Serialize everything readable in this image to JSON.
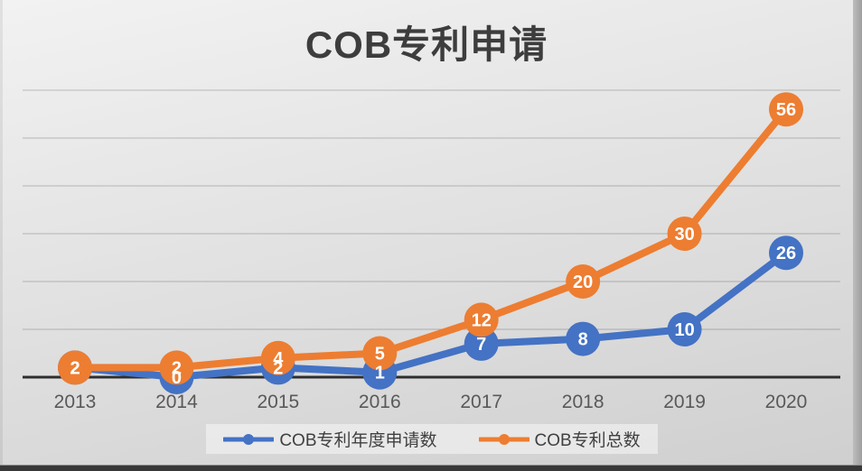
{
  "chart_data": {
    "type": "line",
    "title": "COB专利申请",
    "categories": [
      "2013",
      "2014",
      "2015",
      "2016",
      "2017",
      "2018",
      "2019",
      "2020"
    ],
    "series": [
      {
        "name": "COB专利年度申请数",
        "color": "#4472C4",
        "values": [
          2,
          0,
          2,
          1,
          7,
          8,
          10,
          26
        ]
      },
      {
        "name": "COB专利总数",
        "color": "#ED7D31",
        "values": [
          2,
          2,
          4,
          5,
          12,
          20,
          30,
          56
        ]
      }
    ],
    "xlabel": "",
    "ylabel": "",
    "ylim": [
      0,
      60
    ],
    "gridline_step": 10,
    "grid": "horizontal",
    "legend_position": "bottom",
    "data_labels": "center",
    "data_label_color": "#ffffff",
    "axis_color": "#2e2e2e",
    "tick_label_color": "#595959"
  }
}
